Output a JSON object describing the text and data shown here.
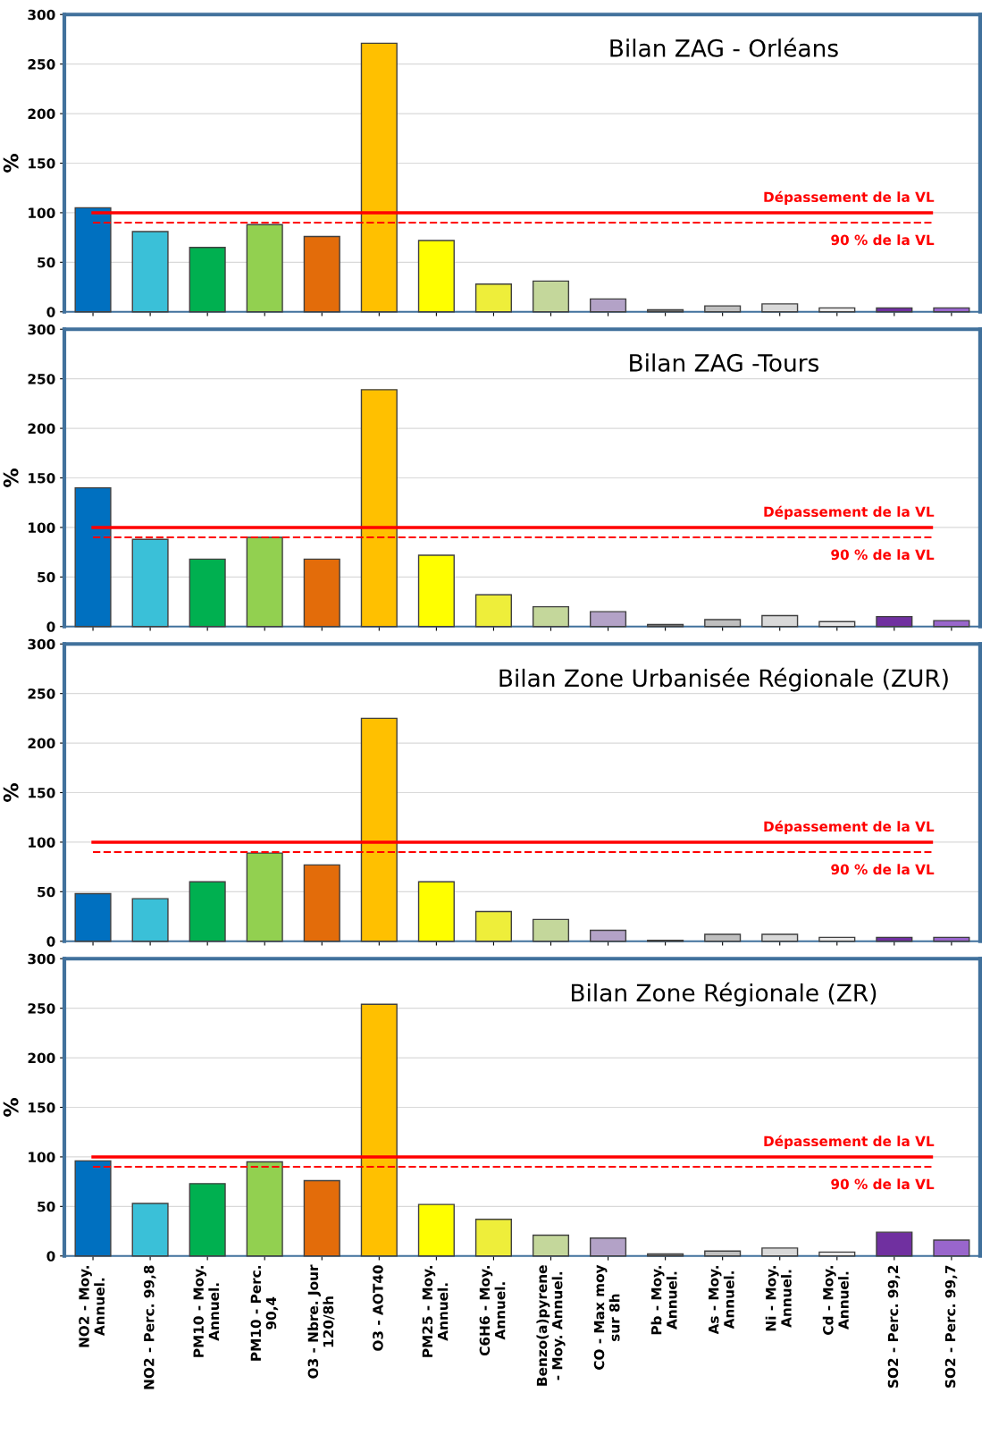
{
  "chart_data": [
    {
      "type": "bar",
      "title": "Bilan ZAG - Orléans",
      "ylabel": "%",
      "categories": [
        null,
        null,
        null,
        null,
        null,
        null,
        null,
        null,
        null,
        null,
        null,
        null,
        null,
        null,
        null,
        null
      ],
      "values": [
        105,
        81,
        65,
        88,
        76,
        271,
        72,
        28,
        31,
        13,
        2,
        6,
        8,
        4,
        4,
        4
      ],
      "colors": [
        "#0070c0",
        "#3ac0d8",
        "#00b050",
        "#92d050",
        "#e36c0a",
        "#ffc000",
        "#ffff00",
        "#eeee3a",
        "#c4d79b",
        "#b3a2c7",
        "#7f7f7f",
        "#bfbfbf",
        "#d9d9d9",
        "#e7e6e6",
        "#7030a0",
        "#9966cc"
      ],
      "ylim": [
        0,
        300
      ],
      "yticks": [
        0,
        50,
        100,
        150,
        200,
        250,
        300
      ],
      "grid": "y",
      "tick_labels": "y",
      "ref_lines": [
        {
          "axis": "y",
          "value": 100,
          "label": "Dépassement de la VL",
          "color": "#ff0000",
          "line_style": "solid"
        },
        {
          "axis": "y",
          "value": 90,
          "label": "90 % de la VL",
          "color": "#ff0000",
          "line_style": "dashed"
        }
      ]
    },
    {
      "type": "bar",
      "title": "Bilan ZAG -Tours",
      "ylabel": "%",
      "categories": [
        null,
        null,
        null,
        null,
        null,
        null,
        null,
        null,
        null,
        null,
        null,
        null,
        null,
        null,
        null,
        null
      ],
      "values": [
        140,
        88,
        68,
        90,
        68,
        239,
        72,
        32,
        20,
        15,
        2,
        7,
        11,
        5,
        10,
        6
      ],
      "colors": [
        "#0070c0",
        "#3ac0d8",
        "#00b050",
        "#92d050",
        "#e36c0a",
        "#ffc000",
        "#ffff00",
        "#eeee3a",
        "#c4d79b",
        "#b3a2c7",
        "#7f7f7f",
        "#bfbfbf",
        "#d9d9d9",
        "#e7e6e6",
        "#7030a0",
        "#9966cc"
      ],
      "ylim": [
        0,
        300
      ],
      "yticks": [
        0,
        50,
        100,
        150,
        200,
        250,
        300
      ],
      "grid": "y",
      "tick_labels": "y",
      "ref_lines": [
        {
          "axis": "y",
          "value": 100,
          "label": "Dépassement de la VL",
          "color": "#ff0000",
          "line_style": "solid"
        },
        {
          "axis": "y",
          "value": 90,
          "label": "90 % de la VL",
          "color": "#ff0000",
          "line_style": "dashed"
        }
      ]
    },
    {
      "type": "bar",
      "title": "Bilan Zone Urbanisée Régionale (ZUR)",
      "ylabel": "%",
      "categories": [
        null,
        null,
        null,
        null,
        null,
        null,
        null,
        null,
        null,
        null,
        null,
        null,
        null,
        null,
        null,
        null
      ],
      "values": [
        48,
        43,
        60,
        89,
        77,
        225,
        60,
        30,
        22,
        11,
        1,
        7,
        7,
        4,
        4,
        4
      ],
      "colors": [
        "#0070c0",
        "#3ac0d8",
        "#00b050",
        "#92d050",
        "#e36c0a",
        "#ffc000",
        "#ffff00",
        "#eeee3a",
        "#c4d79b",
        "#b3a2c7",
        "#7f7f7f",
        "#bfbfbf",
        "#d9d9d9",
        "#e7e6e6",
        "#7030a0",
        "#9966cc"
      ],
      "ylim": [
        0,
        300
      ],
      "yticks": [
        0,
        50,
        100,
        150,
        200,
        250,
        300
      ],
      "grid": "y",
      "tick_labels": "y",
      "ref_lines": [
        {
          "axis": "y",
          "value": 100,
          "label": "Dépassement de la VL",
          "color": "#ff0000",
          "line_style": "solid"
        },
        {
          "axis": "y",
          "value": 90,
          "label": "90 % de la VL",
          "color": "#ff0000",
          "line_style": "dashed"
        }
      ]
    },
    {
      "type": "bar",
      "title": "Bilan Zone Régionale (ZR)",
      "ylabel": "%",
      "categories": [
        "NO2 - Moy.\nAnnuel.",
        "NO2 - Perc. 99,8",
        "PM10 - Moy.\nAnnuel.",
        "PM10 - Perc.\n90,4",
        "O3 - Nbre. Jour\n120/8h",
        "O3 - AOT40",
        "PM25 - Moy.\nAnnuel.",
        "C6H6 - Moy.\nAnnuel.",
        "Benzo(a)pyrene\n- Moy. Annuel.",
        "CO - Max moy\nsur 8h",
        "Pb - Moy.\nAnnuel.",
        "As - Moy.\nAnnuel.",
        "Ni - Moy.\nAnnuel.",
        "Cd - Moy.\nAnnuel.",
        "SO2 - Perc. 99,2",
        "SO2 - Perc. 99,7"
      ],
      "values": [
        96,
        53,
        73,
        95,
        76,
        254,
        52,
        37,
        21,
        18,
        2,
        5,
        8,
        4,
        24,
        16
      ],
      "colors": [
        "#0070c0",
        "#3ac0d8",
        "#00b050",
        "#92d050",
        "#e36c0a",
        "#ffc000",
        "#ffff00",
        "#eeee3a",
        "#c4d79b",
        "#b3a2c7",
        "#7f7f7f",
        "#bfbfbf",
        "#d9d9d9",
        "#e7e6e6",
        "#7030a0",
        "#9966cc"
      ],
      "ylim": [
        0,
        300
      ],
      "yticks": [
        0,
        50,
        100,
        150,
        200,
        250,
        300
      ],
      "grid": "y",
      "ref_lines": [
        {
          "axis": "y",
          "value": 100,
          "label": "Dépassement de la VL",
          "color": "#ff0000",
          "line_style": "solid"
        },
        {
          "axis": "y",
          "value": 90,
          "label": "90 % de la VL",
          "color": "#ff0000",
          "line_style": "dashed"
        }
      ]
    }
  ]
}
